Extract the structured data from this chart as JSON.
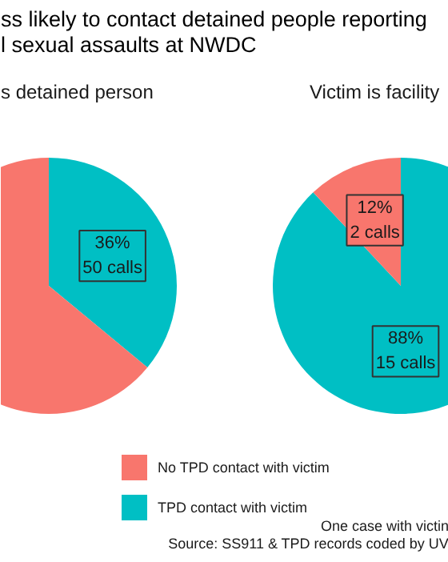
{
  "chart_data": [
    {
      "type": "pie",
      "title": "ss likely to contact detained people reporting\nl sexual assaults at NWDC",
      "subtitle": "s detained person",
      "categories": [
        "No TPD contact with victim",
        "TPD contact with victim"
      ],
      "values": [
        64,
        36
      ],
      "colors": [
        "#f8766d",
        "#00bfc4"
      ],
      "value_labels": [
        null,
        "36%\n50 calls"
      ],
      "legend": "bottom",
      "annotations": [
        "One case with victin",
        "Source: SS911 & TPD records coded by UV"
      ]
    },
    {
      "type": "pie",
      "subtitle": "Victim is facility",
      "categories": [
        null,
        null
      ],
      "values": [
        12,
        88
      ],
      "colors": [
        "#f8766d",
        "#00bfc4"
      ],
      "value_labels": [
        "12%\n2 calls",
        "88%\n15 calls"
      ]
    }
  ]
}
